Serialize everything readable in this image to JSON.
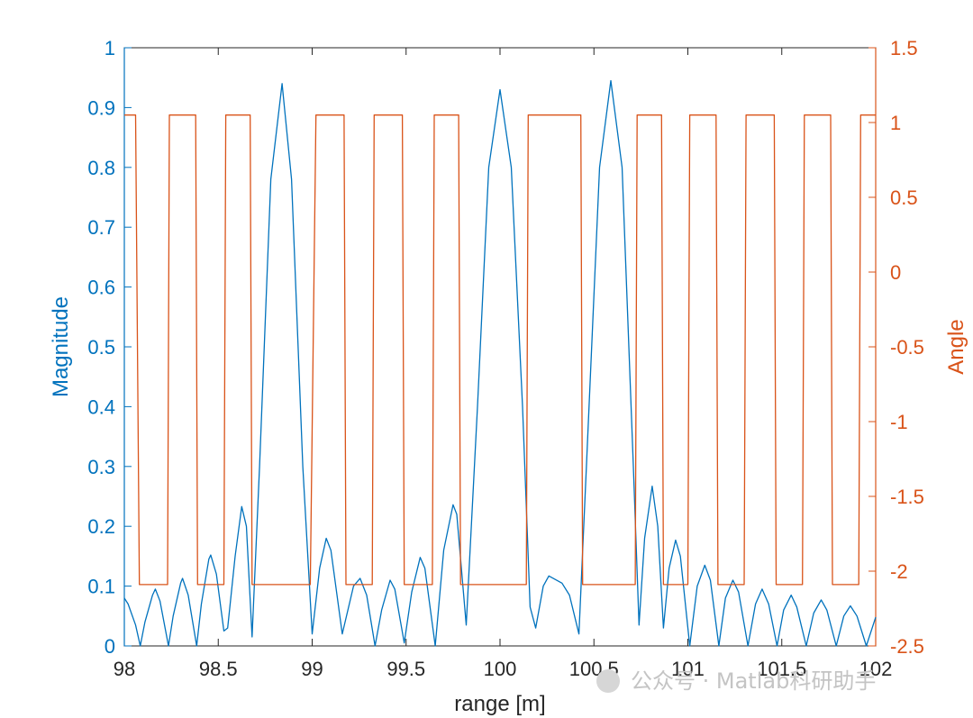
{
  "chart_data": {
    "type": "line",
    "xlabel": "range [m]",
    "ylabel_left": "Magnitude",
    "ylabel_right": "Angle",
    "xlim": [
      98,
      102
    ],
    "ylim_left": [
      0,
      1
    ],
    "ylim_right": [
      -2.5,
      1.5
    ],
    "x_ticks": [
      "98",
      "98.5",
      "99",
      "99.5",
      "100",
      "100.5",
      "101",
      "101.5",
      "102"
    ],
    "y_left_ticks": [
      "0",
      "0.1",
      "0.2",
      "0.3",
      "0.4",
      "0.5",
      "0.6",
      "0.7",
      "0.8",
      "0.9",
      "1"
    ],
    "y_right_ticks": [
      "-2.5",
      "-2",
      "-1.5",
      "-1",
      "-0.5",
      "0",
      "0.5",
      "1",
      "1.5"
    ],
    "grid": false,
    "colors": {
      "magnitude": "#0072BD",
      "angle": "#D95319",
      "axis": "#262626"
    },
    "series": [
      {
        "axis": "left",
        "points": [
          [
            98.0,
            0.08
          ],
          [
            98.02,
            0.07
          ],
          [
            98.06,
            0.035
          ],
          [
            98.085,
            0.0
          ],
          [
            98.11,
            0.04
          ],
          [
            98.15,
            0.085
          ],
          [
            98.165,
            0.095
          ],
          [
            98.19,
            0.075
          ],
          [
            98.235,
            0.0
          ],
          [
            98.26,
            0.05
          ],
          [
            98.3,
            0.105
          ],
          [
            98.31,
            0.113
          ],
          [
            98.34,
            0.085
          ],
          [
            98.385,
            0.0
          ],
          [
            98.41,
            0.07
          ],
          [
            98.45,
            0.145
          ],
          [
            98.46,
            0.152
          ],
          [
            98.49,
            0.12
          ],
          [
            98.53,
            0.025
          ],
          [
            98.55,
            0.03
          ],
          [
            98.59,
            0.15
          ],
          [
            98.625,
            0.233
          ],
          [
            98.65,
            0.2
          ],
          [
            98.68,
            0.015
          ],
          [
            98.72,
            0.3
          ],
          [
            98.78,
            0.78
          ],
          [
            98.84,
            0.94
          ],
          [
            98.89,
            0.78
          ],
          [
            98.95,
            0.3
          ],
          [
            99.0,
            0.02
          ],
          [
            99.04,
            0.13
          ],
          [
            99.075,
            0.18
          ],
          [
            99.1,
            0.16
          ],
          [
            99.16,
            0.02
          ],
          [
            99.22,
            0.1
          ],
          [
            99.255,
            0.113
          ],
          [
            99.29,
            0.085
          ],
          [
            99.335,
            0.0
          ],
          [
            99.37,
            0.06
          ],
          [
            99.415,
            0.11
          ],
          [
            99.44,
            0.095
          ],
          [
            99.49,
            0.005
          ],
          [
            99.53,
            0.09
          ],
          [
            99.575,
            0.148
          ],
          [
            99.6,
            0.13
          ],
          [
            99.655,
            0.0
          ],
          [
            99.7,
            0.16
          ],
          [
            99.75,
            0.236
          ],
          [
            99.77,
            0.22
          ],
          [
            99.82,
            0.035
          ],
          [
            99.88,
            0.4
          ],
          [
            99.94,
            0.8
          ],
          [
            100.0,
            0.93
          ],
          [
            100.06,
            0.8
          ],
          [
            100.12,
            0.4
          ],
          [
            100.16,
            0.065
          ],
          [
            100.19,
            0.03
          ],
          [
            100.23,
            0.1
          ],
          [
            100.26,
            0.117
          ],
          [
            100.33,
            0.105
          ],
          [
            100.37,
            0.085
          ],
          [
            100.42,
            0.02
          ],
          [
            100.46,
            0.3
          ],
          [
            100.53,
            0.8
          ],
          [
            100.59,
            0.945
          ],
          [
            100.65,
            0.8
          ],
          [
            100.71,
            0.3
          ],
          [
            100.74,
            0.035
          ],
          [
            100.77,
            0.18
          ],
          [
            100.81,
            0.267
          ],
          [
            100.84,
            0.2
          ],
          [
            100.87,
            0.03
          ],
          [
            100.9,
            0.13
          ],
          [
            100.935,
            0.177
          ],
          [
            100.96,
            0.15
          ],
          [
            101.01,
            0.0
          ],
          [
            101.05,
            0.1
          ],
          [
            101.09,
            0.135
          ],
          [
            101.12,
            0.11
          ],
          [
            101.165,
            0.0
          ],
          [
            101.2,
            0.08
          ],
          [
            101.24,
            0.11
          ],
          [
            101.27,
            0.09
          ],
          [
            101.32,
            0.0
          ],
          [
            101.36,
            0.07
          ],
          [
            101.395,
            0.095
          ],
          [
            101.43,
            0.07
          ],
          [
            101.475,
            0.0
          ],
          [
            101.51,
            0.06
          ],
          [
            101.55,
            0.085
          ],
          [
            101.58,
            0.065
          ],
          [
            101.63,
            0.0
          ],
          [
            101.67,
            0.055
          ],
          [
            101.71,
            0.077
          ],
          [
            101.74,
            0.06
          ],
          [
            101.79,
            0.0
          ],
          [
            101.83,
            0.05
          ],
          [
            101.865,
            0.067
          ],
          [
            101.9,
            0.05
          ],
          [
            101.95,
            0.0
          ],
          [
            102.0,
            0.048
          ]
        ]
      },
      {
        "axis": "right",
        "points": [
          [
            98.0,
            1.05
          ],
          [
            98.06,
            1.05
          ],
          [
            98.08,
            -2.09
          ],
          [
            98.23,
            -2.09
          ],
          [
            98.24,
            1.05
          ],
          [
            98.38,
            1.05
          ],
          [
            98.39,
            -2.09
          ],
          [
            98.53,
            -2.09
          ],
          [
            98.54,
            1.05
          ],
          [
            98.67,
            1.05
          ],
          [
            98.68,
            -2.09
          ],
          [
            98.99,
            -2.09
          ],
          [
            99.02,
            1.05
          ],
          [
            99.17,
            1.05
          ],
          [
            99.18,
            -2.09
          ],
          [
            99.32,
            -2.09
          ],
          [
            99.33,
            1.05
          ],
          [
            99.48,
            1.05
          ],
          [
            99.49,
            -2.09
          ],
          [
            99.64,
            -2.09
          ],
          [
            99.65,
            1.05
          ],
          [
            99.78,
            1.05
          ],
          [
            99.79,
            -2.09
          ],
          [
            100.14,
            -2.09
          ],
          [
            100.15,
            1.05
          ],
          [
            100.43,
            1.05
          ],
          [
            100.44,
            -2.09
          ],
          [
            100.72,
            -2.09
          ],
          [
            100.73,
            1.05
          ],
          [
            100.86,
            1.05
          ],
          [
            100.87,
            -2.09
          ],
          [
            101.0,
            -2.09
          ],
          [
            101.01,
            1.05
          ],
          [
            101.15,
            1.05
          ],
          [
            101.16,
            -2.09
          ],
          [
            101.3,
            -2.09
          ],
          [
            101.31,
            1.05
          ],
          [
            101.46,
            1.05
          ],
          [
            101.47,
            -2.09
          ],
          [
            101.61,
            -2.09
          ],
          [
            101.62,
            1.05
          ],
          [
            101.76,
            1.05
          ],
          [
            101.77,
            -2.09
          ],
          [
            101.91,
            -2.09
          ],
          [
            101.92,
            1.05
          ],
          [
            102.0,
            1.05
          ]
        ]
      }
    ]
  },
  "watermark": "公众号 · Matlab科研助手"
}
